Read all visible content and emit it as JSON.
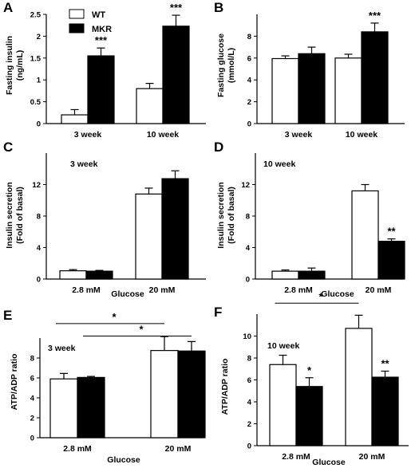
{
  "legend": {
    "wt_label": "WT",
    "mkr_label": "MKR",
    "wt_color": "#ffffff",
    "mkr_color": "#000000"
  },
  "chart_data": [
    {
      "panel": "A",
      "type": "bar",
      "ylabel": [
        "Fasting insulin",
        "(ng/mL)"
      ],
      "xlabel": "",
      "categories": [
        "3 week",
        "10 week"
      ],
      "series": [
        {
          "name": "WT",
          "values": [
            0.2,
            0.8
          ],
          "errors": [
            0.12,
            0.12
          ]
        },
        {
          "name": "MKR",
          "values": [
            1.55,
            2.23
          ],
          "errors": [
            0.18,
            0.25
          ]
        }
      ],
      "yticks": [
        0,
        0.5,
        1,
        1.5,
        2,
        2.5
      ],
      "ytick_labels": [
        "0",
        "0.5",
        "1",
        "1.5",
        "2",
        "2.5"
      ],
      "ylim": [
        0,
        2.5
      ],
      "annotations": [
        {
          "category": 0,
          "series": 1,
          "text": "***"
        },
        {
          "category": 1,
          "series": 1,
          "text": "***"
        }
      ]
    },
    {
      "panel": "B",
      "type": "bar",
      "ylabel": [
        "Fasting glucose",
        "(mmol/L)"
      ],
      "xlabel": "",
      "categories": [
        "3 week",
        "10 week"
      ],
      "series": [
        {
          "name": "WT",
          "values": [
            5.95,
            6.0
          ],
          "errors": [
            0.25,
            0.35
          ]
        },
        {
          "name": "MKR",
          "values": [
            6.4,
            8.4
          ],
          "errors": [
            0.6,
            0.8
          ]
        }
      ],
      "yticks": [
        0,
        2,
        4,
        6,
        8
      ],
      "ytick_labels": [
        "0",
        "2",
        "4",
        "6",
        "8"
      ],
      "ylim": [
        0,
        10
      ],
      "annotations": [
        {
          "category": 1,
          "series": 1,
          "text": "***"
        }
      ]
    },
    {
      "panel": "C",
      "type": "bar",
      "ylabel": [
        "Insulin secretion",
        "(Fold of basal)"
      ],
      "xlabel": "Glucose",
      "inner_label": "3 week",
      "categories": [
        "2.8 mM",
        "20 mM"
      ],
      "series": [
        {
          "name": "WT",
          "values": [
            1.05,
            10.8
          ],
          "errors": [
            0.15,
            0.75
          ]
        },
        {
          "name": "MKR",
          "values": [
            1.0,
            12.75
          ],
          "errors": [
            0.1,
            1.0
          ]
        }
      ],
      "yticks": [
        0,
        4,
        8,
        12
      ],
      "ytick_labels": [
        "0",
        "4",
        "8",
        "12"
      ],
      "ylim": [
        0,
        16
      ],
      "annotations": []
    },
    {
      "panel": "D",
      "type": "bar",
      "ylabel": [
        "Insulin secretion",
        "(Fold of basal)"
      ],
      "xlabel": "Glucose",
      "inner_label": "10 week",
      "categories": [
        "2.8 mM",
        "20 mM"
      ],
      "series": [
        {
          "name": "WT",
          "values": [
            1.0,
            11.2
          ],
          "errors": [
            0.15,
            0.8
          ]
        },
        {
          "name": "MKR",
          "values": [
            1.0,
            4.8
          ],
          "errors": [
            0.4,
            0.3
          ]
        }
      ],
      "yticks": [
        0,
        4,
        8,
        12
      ],
      "ytick_labels": [
        "0",
        "4",
        "8",
        "12"
      ],
      "ylim": [
        0,
        16
      ],
      "annotations": [
        {
          "category": 1,
          "series": 1,
          "text": "**"
        }
      ]
    },
    {
      "panel": "E",
      "type": "bar",
      "ylabel": [
        "ATP/ADP ratio"
      ],
      "xlabel": "Glucose",
      "inner_label": "3 week",
      "categories": [
        "2.8 mM",
        "20 mM"
      ],
      "series": [
        {
          "name": "WT",
          "values": [
            5.9,
            8.75
          ],
          "errors": [
            0.55,
            1.4
          ]
        },
        {
          "name": "MKR",
          "values": [
            6.05,
            8.7
          ],
          "errors": [
            0.1,
            0.95
          ]
        }
      ],
      "yticks": [
        0,
        2,
        4,
        6,
        8
      ],
      "ytick_labels": [
        "0",
        "2",
        "4",
        "6",
        "8"
      ],
      "ylim": [
        0,
        10
      ],
      "annotations": [],
      "brackets": [
        {
          "from": [
            0,
            0
          ],
          "to": [
            1,
            0
          ],
          "text": "*",
          "level": 11.45
        },
        {
          "from": [
            0,
            1
          ],
          "to": [
            1,
            1
          ],
          "text": "*",
          "level": 10.2
        }
      ]
    },
    {
      "panel": "F",
      "type": "bar",
      "ylabel": [
        "ATP/ADP ratio"
      ],
      "xlabel": "Glucose",
      "inner_label": "10 week",
      "categories": [
        "2.8 mM",
        "20 mM"
      ],
      "series": [
        {
          "name": "WT",
          "values": [
            7.4,
            10.7
          ],
          "errors": [
            0.85,
            1.2
          ]
        },
        {
          "name": "MKR",
          "values": [
            5.4,
            6.25
          ],
          "errors": [
            0.8,
            0.55
          ]
        }
      ],
      "yticks": [
        0,
        2,
        4,
        6,
        8,
        10
      ],
      "ytick_labels": [
        "0",
        "2",
        "4",
        "6",
        "8",
        "10"
      ],
      "ylim": [
        0,
        12
      ],
      "annotations": [
        {
          "category": 0,
          "series": 1,
          "text": "*"
        },
        {
          "category": 1,
          "series": 1,
          "text": "**"
        }
      ],
      "brackets": [
        {
          "from": [
            0,
            0
          ],
          "to": [
            1,
            0
          ],
          "text": "*",
          "level": 13.0
        }
      ]
    }
  ]
}
